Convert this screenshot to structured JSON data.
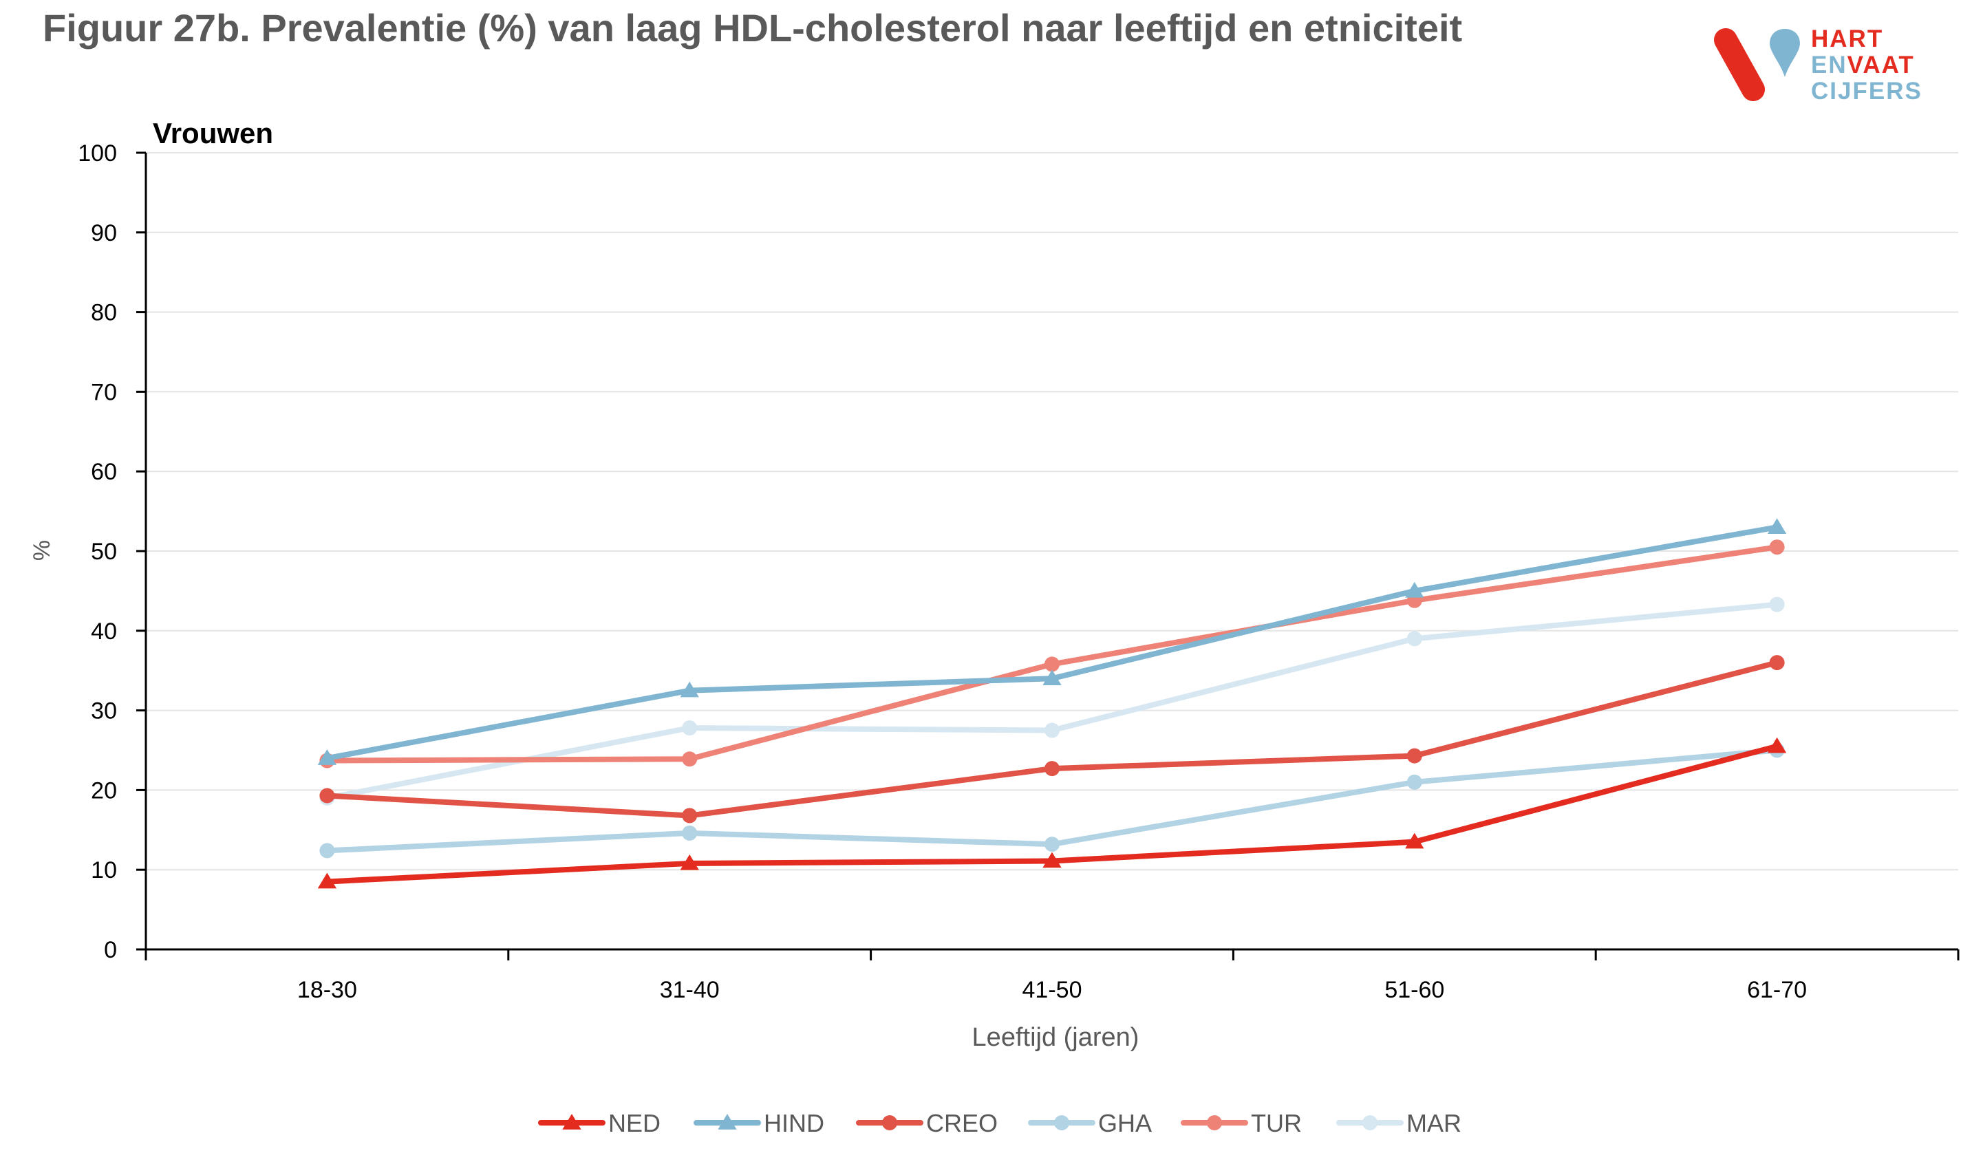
{
  "figure": {
    "title": "Figuur 27b. Prevalentie (%) van  laag HDL-cholesterol naar leeftijd en etniciteit"
  },
  "logo": {
    "line1": "HART",
    "line2_a": "EN",
    "line2_b": "VAAT",
    "line3": "CIJFERS"
  },
  "chart_data": {
    "type": "line",
    "panel_label": "Vrouwen",
    "xlabel": "Leeftijd (jaren)",
    "ylabel": "%",
    "ylim": [
      0,
      100
    ],
    "yticks": [
      0,
      10,
      20,
      30,
      40,
      50,
      60,
      70,
      80,
      90,
      100
    ],
    "grid": true,
    "legend_position": "bottom",
    "categories": [
      "18-30",
      "31-40",
      "41-50",
      "51-60",
      "61-70"
    ],
    "series": [
      {
        "name": "NED",
        "color": "#e32b1f",
        "marker": "triangle",
        "values": [
          8.5,
          10.8,
          11.1,
          13.5,
          25.5
        ]
      },
      {
        "name": "HIND",
        "color": "#7fb5d1",
        "marker": "triangle",
        "values": [
          24.0,
          32.5,
          34.0,
          45.0,
          53.0
        ]
      },
      {
        "name": "CREO",
        "color": "#e05346",
        "marker": "circle",
        "values": [
          19.3,
          16.8,
          22.7,
          24.3,
          36.0
        ]
      },
      {
        "name": "GHA",
        "color": "#b2d3e4",
        "marker": "circle",
        "values": [
          12.4,
          14.6,
          13.2,
          21.0,
          25.0
        ]
      },
      {
        "name": "TUR",
        "color": "#ee8276",
        "marker": "circle",
        "values": [
          23.7,
          23.9,
          35.8,
          43.8,
          50.5
        ]
      },
      {
        "name": "MAR",
        "color": "#d6e7f1",
        "marker": "circle",
        "values": [
          19.0,
          27.8,
          27.5,
          39.0,
          43.3
        ]
      }
    ]
  }
}
